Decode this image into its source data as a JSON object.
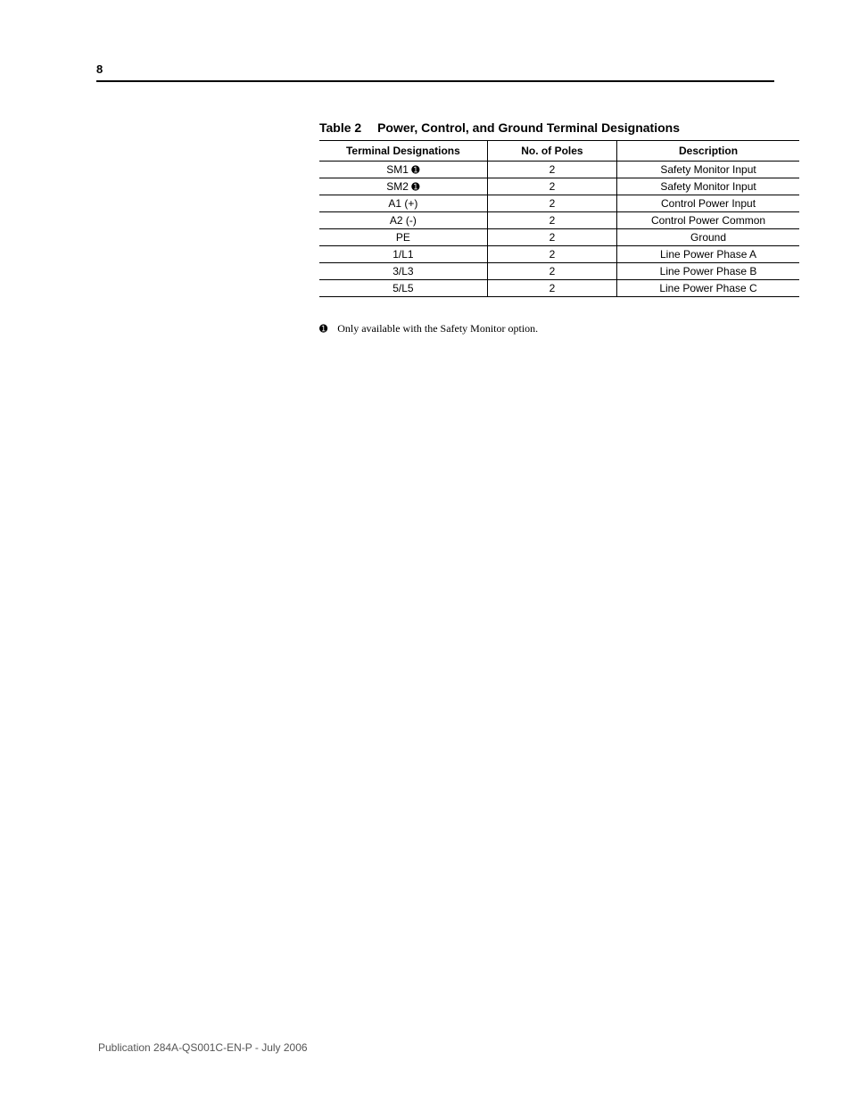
{
  "page": {
    "number": "8",
    "publication": "Publication 284A-QS001C-EN-P - July 2006"
  },
  "table": {
    "label": "Table 2",
    "title": "Power, Control, and Ground Terminal Designations",
    "columns": [
      "Terminal Designations",
      "No. of Poles",
      "Description"
    ],
    "column_widths_pct": [
      35,
      27,
      38
    ],
    "rows": [
      {
        "td": "SM1",
        "note_mark": "➊",
        "poles": "2",
        "desc": "Safety Monitor Input"
      },
      {
        "td": "SM2",
        "note_mark": "➊",
        "poles": "2",
        "desc": "Safety Monitor Input"
      },
      {
        "td": "A1 (+)",
        "note_mark": "",
        "poles": "2",
        "desc": "Control Power Input"
      },
      {
        "td": "A2 (-)",
        "note_mark": "",
        "poles": "2",
        "desc": "Control Power Common"
      },
      {
        "td": "PE",
        "note_mark": "",
        "poles": "2",
        "desc": "Ground"
      },
      {
        "td": "1/L1",
        "note_mark": "",
        "poles": "2",
        "desc": "Line Power Phase A"
      },
      {
        "td": "3/L3",
        "note_mark": "",
        "poles": "2",
        "desc": "Line Power Phase B"
      },
      {
        "td": "5/L5",
        "note_mark": "",
        "poles": "2",
        "desc": "Line Power Phase C"
      }
    ],
    "footnote": {
      "mark": "➊",
      "text": "Only available with the Safety Monitor option."
    }
  }
}
